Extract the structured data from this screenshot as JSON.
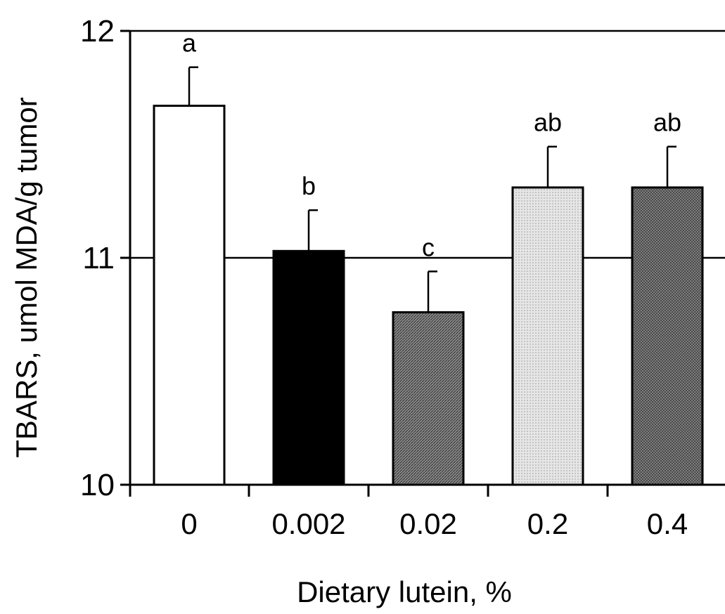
{
  "chart_data": {
    "type": "bar",
    "title": "",
    "xlabel": "Dietary lutein, %",
    "ylabel": "TBARS, umol MDA/g tumor",
    "categories": [
      "0",
      "0.002",
      "0.02",
      "0.2",
      "0.4"
    ],
    "values": [
      11.67,
      11.03,
      10.76,
      11.31,
      11.31
    ],
    "errors": [
      0.17,
      0.18,
      0.18,
      0.18,
      0.18
    ],
    "significance": [
      "a",
      "b",
      "c",
      "ab",
      "ab"
    ],
    "fills": [
      "white",
      "black",
      "dark-gray-hatch",
      "light-gray-dots",
      "dark-gray-crosshatch"
    ],
    "ylim": [
      10,
      12
    ],
    "yticks": [
      "10",
      "11",
      "12"
    ],
    "grid": "horizontal",
    "legend": "none"
  }
}
